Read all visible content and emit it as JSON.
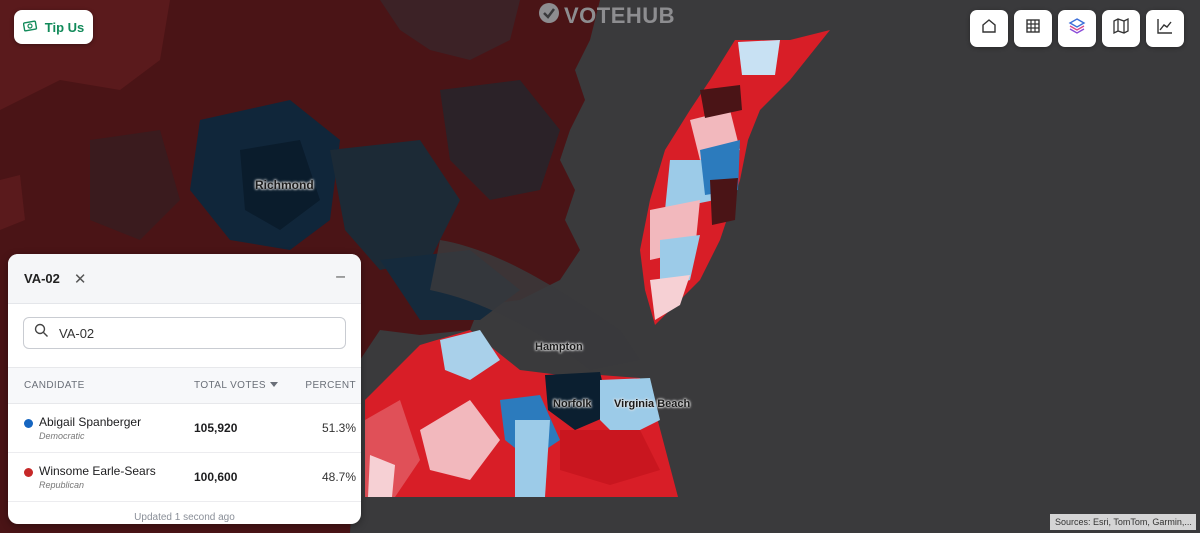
{
  "header": {
    "logo_text": "VOTEHUB"
  },
  "tip_button": {
    "label": "Tip Us"
  },
  "toolbar": {
    "buttons": [
      "home-icon",
      "grid-icon",
      "layers-icon",
      "map-icon",
      "chart-icon"
    ]
  },
  "map": {
    "labels": {
      "richmond": "Richmond",
      "hampton": "Hampton",
      "norfolk": "Norfolk",
      "virginia_beach": "Virginia Beach"
    },
    "colors": {
      "dem_dark": "#0b3a5e",
      "dem_mid": "#2c7bbd",
      "dem_light": "#9ccbe8",
      "rep_dark": "#4a0f12",
      "rep_mid": "#d81e27",
      "rep_light": "#f2b8bd",
      "water": "#3a3a3c"
    }
  },
  "panel": {
    "title": "VA-02",
    "search_value": "VA-02",
    "columns": {
      "candidate": "CANDIDATE",
      "total_votes": "TOTAL VOTES",
      "percent": "PERCENT"
    },
    "rows": [
      {
        "name": "Abigail Spanberger",
        "party": "Democratic",
        "votes": "105,920",
        "percent": "51.3%",
        "color": "#1565c0"
      },
      {
        "name": "Winsome Earle-Sears",
        "party": "Republican",
        "votes": "100,600",
        "percent": "48.7%",
        "color": "#c62828"
      }
    ],
    "updated": "Updated 1 second ago"
  },
  "attribution": "Sources: Esri, TomTom, Garmin,..."
}
